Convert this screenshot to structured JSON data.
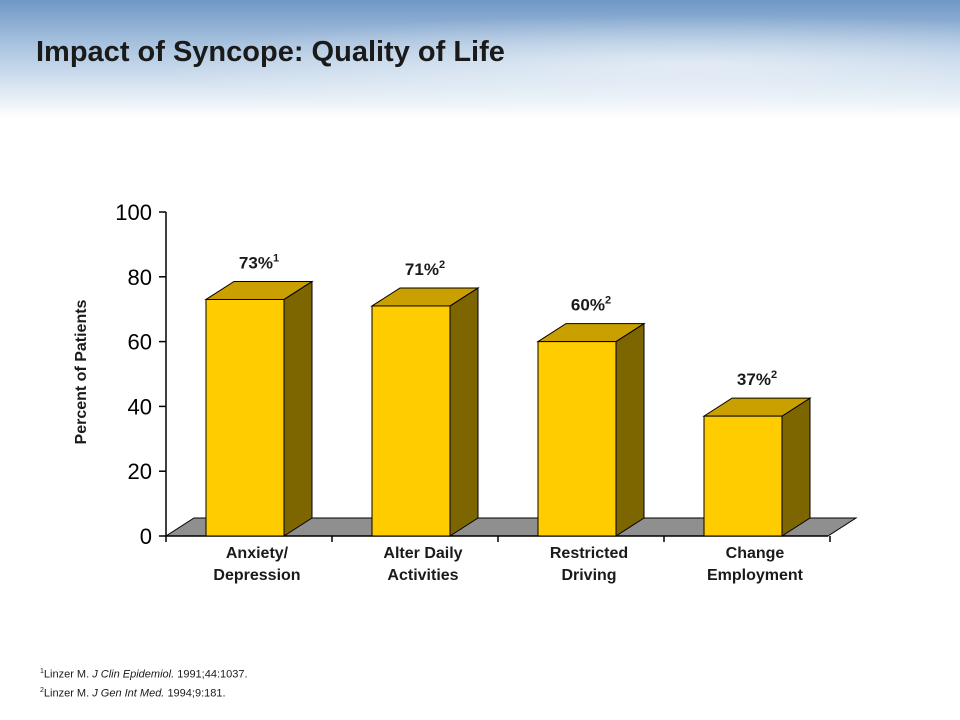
{
  "slide": {
    "title": "Impact of Syncope: Quality of Life"
  },
  "chart_data": {
    "type": "bar",
    "style": "3d",
    "title": "",
    "xlabel": "",
    "ylabel": "Percent of Patients",
    "ylim": [
      0,
      100
    ],
    "yticks": [
      0,
      20,
      40,
      60,
      80,
      100
    ],
    "categories": [
      [
        "Anxiety/",
        "Depression"
      ],
      [
        "Alter Daily",
        "Activities"
      ],
      [
        "Restricted",
        "Driving"
      ],
      [
        "Change",
        "Employment"
      ]
    ],
    "values": [
      73,
      71,
      60,
      37
    ],
    "data_labels": [
      {
        "text": "73%",
        "ref": "1"
      },
      {
        "text": "71%",
        "ref": "2"
      },
      {
        "text": "60%",
        "ref": "2"
      },
      {
        "text": "37%",
        "ref": "2"
      }
    ],
    "colors": {
      "front": "#ffcc00",
      "top": "#c9a000",
      "side": "#7d6500",
      "floor": "#8f8f8f"
    }
  },
  "references": [
    {
      "num": "1",
      "author": "Linzer M.",
      "journal": "J Clin Epidemiol.",
      "detail": "1991;44:1037."
    },
    {
      "num": "2",
      "author": "Linzer M.",
      "journal": "J Gen Int Med.",
      "detail": "1994;9:181."
    }
  ]
}
